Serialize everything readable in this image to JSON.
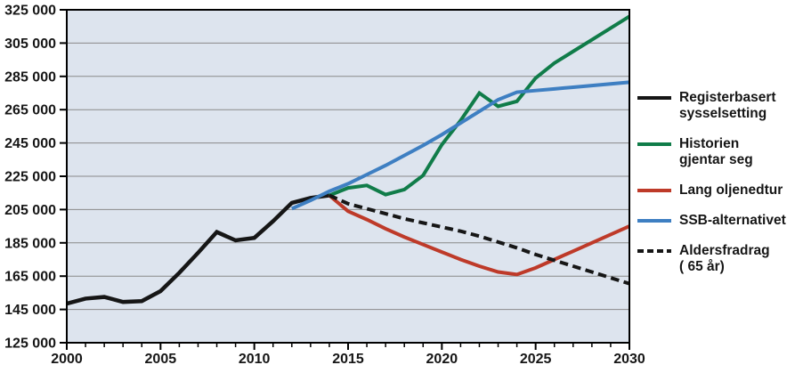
{
  "chart_data": {
    "type": "line",
    "title": "",
    "xlabel": "",
    "ylabel": "",
    "x_range": [
      2000,
      2030
    ],
    "y_range": [
      125000,
      325000
    ],
    "y_tick_step": 20000,
    "x_minor_step": 1,
    "x_major_step": 5,
    "grid": "horizontal",
    "legend_position": "right",
    "plot_bg": "#dde4ee",
    "grid_color": "#898989",
    "axis_color": "#000000",
    "label_color": "#161616",
    "y_tick_labels": [
      "325 000",
      "305 000",
      "285 000",
      "265 000",
      "245 000",
      "225 000",
      "205 000",
      "185 000",
      "165 000",
      "145 000",
      "125 000"
    ],
    "x_tick_labels": [
      "2000",
      "2005",
      "2010",
      "2015",
      "2020",
      "2025",
      "2030"
    ],
    "series": [
      {
        "name": "Registerbasert sysselsetting",
        "slug": "registerbasert-sysselsetting",
        "legend_lines": [
          "Registerbasert",
          "sysselsetting"
        ],
        "color": "#161616",
        "style": "solid",
        "stroke_width": 4.5,
        "start_year": 2000,
        "values": [
          148500,
          151500,
          152500,
          149500,
          150000,
          156000,
          167000,
          179000,
          191500,
          186500,
          188000,
          198000,
          209000,
          212000,
          213500
        ]
      },
      {
        "name": "Historien gjentar seg",
        "slug": "historien-gjentar-seg",
        "legend_lines": [
          "Historien",
          "gjentar seg"
        ],
        "color": "#107c49",
        "style": "solid",
        "stroke_width": 4,
        "start_year": 2014,
        "values": [
          213500,
          218000,
          219500,
          214000,
          217000,
          225500,
          244000,
          258500,
          275000,
          267000,
          270000,
          284000,
          293000,
          300000,
          307000,
          314000,
          321000
        ]
      },
      {
        "name": "Lang oljenedtur",
        "slug": "lang-oljenedtur",
        "legend_lines": [
          "Lang oljenedtur"
        ],
        "color": "#be3a29",
        "style": "solid",
        "stroke_width": 4,
        "start_year": 2014,
        "values": [
          213500,
          204000,
          199000,
          193500,
          188500,
          184000,
          179500,
          175000,
          171000,
          167500,
          166000,
          170000,
          175000,
          180000,
          185000,
          190000,
          195000
        ]
      },
      {
        "name": "SSB-alternativet",
        "slug": "ssb-alternativet",
        "legend_lines": [
          "SSB-alternativet"
        ],
        "color": "#3e7fc2",
        "style": "solid",
        "stroke_width": 4,
        "start_year": 2012,
        "values": [
          205500,
          210500,
          216000,
          220500,
          226000,
          231500,
          237500,
          243500,
          250000,
          257000,
          264000,
          271000,
          275500,
          276500,
          277500,
          278500,
          279500,
          280500,
          281500
        ]
      },
      {
        "name": "Aldersfradrag ( 65 år)",
        "slug": "aldersfradrag-65-ar",
        "legend_lines": [
          "Aldersfradrag",
          "( 65 år)"
        ],
        "color": "#161616",
        "style": "dashed",
        "stroke_width": 4,
        "start_year": 2014,
        "values": [
          213500,
          208500,
          205500,
          202500,
          199500,
          197000,
          194500,
          192000,
          189000,
          185500,
          182000,
          178000,
          174500,
          171000,
          167500,
          164000,
          160500
        ]
      }
    ]
  }
}
